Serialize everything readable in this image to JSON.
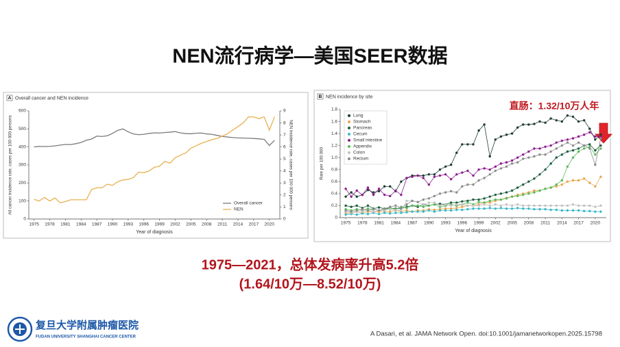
{
  "slide": {
    "title": "NEN流行病学—美国SEER数据",
    "summary": [
      "1975—2021，总体发病率升高5.2倍",
      "(1.64/10万—8.52/10万)"
    ],
    "logo": {
      "name": "复旦大学附属肿瘤医院",
      "name_en": "FUDAN UNIVERSITY SHANGHAI CANCER CENTER"
    },
    "citation": "A Dasari, et al. JAMA Network Open. doi:10.1001/jamanetworkopen.2025.15798"
  },
  "chart_data": [
    {
      "type": "line",
      "panel": "A",
      "title": "Overall cancer and NEN incidence",
      "x_label": "Year of diagnosis",
      "y_label": "All cancer incidence rate, cases per 100 000 persons",
      "y2_label": "NEN incidence rate, cases per 100 000 persons",
      "x": [
        1975,
        1976,
        1977,
        1978,
        1979,
        1980,
        1981,
        1982,
        1983,
        1984,
        1985,
        1986,
        1987,
        1988,
        1989,
        1990,
        1991,
        1992,
        1993,
        1994,
        1995,
        1996,
        1997,
        1998,
        1999,
        2000,
        2001,
        2002,
        2003,
        2004,
        2005,
        2006,
        2007,
        2008,
        2009,
        2010,
        2011,
        2012,
        2013,
        2014,
        2015,
        2016,
        2017,
        2018,
        2019,
        2020,
        2021
      ],
      "xlim": [
        1974,
        2022
      ],
      "xticks": [
        1975,
        1978,
        1981,
        1984,
        1987,
        1990,
        1993,
        1996,
        1999,
        2002,
        2005,
        2008,
        2011,
        2014,
        2017,
        2020
      ],
      "ylim": [
        0,
        600
      ],
      "yticks": [
        0,
        100,
        200,
        300,
        400,
        500,
        600
      ],
      "y2lim": [
        0,
        9
      ],
      "y2ticks": [
        0,
        1,
        2,
        3,
        4,
        5,
        6,
        7,
        8,
        9
      ],
      "grid": false,
      "markers": false,
      "legend": "lower right",
      "series": [
        {
          "name": "Overall cancer",
          "color": "#7a7a7a",
          "values": [
            400,
            403,
            402,
            403,
            406,
            410,
            414,
            413,
            418,
            425,
            437,
            444,
            460,
            458,
            462,
            475,
            492,
            500,
            484,
            472,
            468,
            470,
            475,
            478,
            477,
            480,
            482,
            485,
            478,
            474,
            473,
            476,
            477,
            472,
            470,
            464,
            458,
            455,
            452,
            450,
            449,
            448,
            447,
            445,
            442,
            408,
            437
          ]
        },
        {
          "name": "NEN",
          "color": "#e8b04e",
          "axis": "y2",
          "values": [
            1.64,
            1.5,
            1.8,
            1.5,
            1.75,
            1.35,
            1.45,
            1.6,
            1.6,
            1.6,
            1.6,
            2.45,
            2.6,
            2.6,
            2.9,
            2.8,
            3.1,
            3.25,
            3.3,
            3.45,
            3.9,
            3.85,
            4.0,
            4.3,
            4.4,
            4.8,
            4.65,
            5.1,
            5.3,
            5.5,
            5.9,
            6.1,
            6.3,
            6.45,
            6.6,
            6.7,
            6.9,
            7.1,
            7.4,
            7.7,
            8.0,
            8.5,
            8.5,
            8.35,
            8.5,
            7.4,
            8.52
          ]
        }
      ]
    },
    {
      "type": "line",
      "panel": "B",
      "title": "NEN incidence by site",
      "x_label": "Year of diagnosis",
      "y_label": "Rate per 100 000",
      "annotation": "直肠：1.32/10万人年",
      "x": [
        1975,
        1976,
        1977,
        1978,
        1979,
        1980,
        1981,
        1982,
        1983,
        1984,
        1985,
        1986,
        1987,
        1988,
        1989,
        1990,
        1991,
        1992,
        1993,
        1994,
        1995,
        1996,
        1997,
        1998,
        1999,
        2000,
        2001,
        2002,
        2003,
        2004,
        2005,
        2006,
        2007,
        2008,
        2009,
        2010,
        2011,
        2012,
        2013,
        2014,
        2015,
        2016,
        2017,
        2018,
        2019,
        2020,
        2021
      ],
      "xlim": [
        1974,
        2022
      ],
      "xticks": [
        1975,
        1978,
        1981,
        1984,
        1987,
        1990,
        1993,
        1996,
        1999,
        2002,
        2005,
        2008,
        2011,
        2014,
        2017,
        2020
      ],
      "ylim": [
        0,
        1.8
      ],
      "yticks": [
        0,
        0.2,
        0.4,
        0.6,
        0.8,
        {
          "value": 1,
          "label": "1.0"
        },
        1.2,
        1.4,
        1.6,
        1.8
      ],
      "grid": false,
      "markers": true,
      "legend": "upper left",
      "series": [
        {
          "name": "Lung",
          "color": "#1f3b36",
          "values": [
            0.35,
            0.42,
            0.35,
            0.38,
            0.46,
            0.42,
            0.44,
            0.52,
            0.52,
            0.44,
            0.6,
            0.66,
            0.7,
            0.7,
            0.7,
            0.72,
            0.72,
            0.8,
            0.85,
            0.88,
            1.08,
            1.22,
            1.22,
            1.22,
            1.45,
            1.55,
            1.02,
            1.3,
            1.35,
            1.38,
            1.4,
            1.5,
            1.55,
            1.55,
            1.56,
            1.6,
            1.58,
            1.65,
            1.62,
            1.6,
            1.7,
            1.68,
            1.6,
            1.62,
            1.48,
            1.3,
            1.38
          ]
        },
        {
          "name": "Stomach",
          "color": "#eaa64a",
          "values": [
            0.08,
            0.07,
            0.1,
            0.08,
            0.1,
            0.09,
            0.1,
            0.1,
            0.1,
            0.12,
            0.1,
            0.12,
            0.1,
            0.12,
            0.12,
            0.14,
            0.13,
            0.14,
            0.15,
            0.15,
            0.16,
            0.18,
            0.2,
            0.2,
            0.22,
            0.25,
            0.25,
            0.28,
            0.3,
            0.33,
            0.35,
            0.38,
            0.4,
            0.42,
            0.45,
            0.45,
            0.48,
            0.5,
            0.52,
            0.55,
            0.6,
            0.62,
            0.62,
            0.65,
            0.58,
            0.52,
            0.68
          ]
        },
        {
          "name": "Pancreas",
          "color": "#1c5e3c",
          "values": [
            0.2,
            0.18,
            0.2,
            0.16,
            0.2,
            0.15,
            0.17,
            0.15,
            0.16,
            0.15,
            0.15,
            0.18,
            0.2,
            0.18,
            0.22,
            0.2,
            0.22,
            0.23,
            0.22,
            0.25,
            0.25,
            0.27,
            0.28,
            0.3,
            0.3,
            0.32,
            0.35,
            0.38,
            0.4,
            0.42,
            0.45,
            0.5,
            0.55,
            0.6,
            0.65,
            0.72,
            0.8,
            0.9,
            1.0,
            1.05,
            1.1,
            1.12,
            1.15,
            1.2,
            1.22,
            1.12,
            1.2
          ]
        },
        {
          "name": "Cecum",
          "color": "#3bb7c9",
          "values": [
            0.05,
            0.06,
            0.05,
            0.07,
            0.06,
            0.08,
            0.06,
            0.08,
            0.07,
            0.08,
            0.08,
            0.09,
            0.1,
            0.1,
            0.1,
            0.12,
            0.1,
            0.12,
            0.12,
            0.12,
            0.13,
            0.13,
            0.14,
            0.15,
            0.15,
            0.15,
            0.16,
            0.15,
            0.16,
            0.15,
            0.15,
            0.16,
            0.15,
            0.15,
            0.14,
            0.14,
            0.14,
            0.13,
            0.13,
            0.12,
            0.12,
            0.12,
            0.12,
            0.11,
            0.11,
            0.1,
            0.1
          ]
        },
        {
          "name": "Small intestine",
          "color": "#8e1d8e",
          "values": [
            0.48,
            0.35,
            0.45,
            0.38,
            0.5,
            0.38,
            0.48,
            0.38,
            0.36,
            0.45,
            0.38,
            0.66,
            0.68,
            0.7,
            0.66,
            0.55,
            0.68,
            0.7,
            0.72,
            0.64,
            0.72,
            0.75,
            0.78,
            0.7,
            0.8,
            0.82,
            0.8,
            0.85,
            0.9,
            0.92,
            0.95,
            1.0,
            1.05,
            1.1,
            1.15,
            1.15,
            1.18,
            1.2,
            1.25,
            1.28,
            1.3,
            1.32,
            1.35,
            1.38,
            1.42,
            1.35,
            1.35
          ]
        },
        {
          "name": "Appendix",
          "color": "#5cb85c",
          "values": [
            0.14,
            0.12,
            0.14,
            0.12,
            0.15,
            0.14,
            0.12,
            0.13,
            0.16,
            0.14,
            0.18,
            0.16,
            0.2,
            0.2,
            0.18,
            0.2,
            0.22,
            0.18,
            0.2,
            0.22,
            0.2,
            0.22,
            0.25,
            0.22,
            0.26,
            0.25,
            0.28,
            0.3,
            0.3,
            0.32,
            0.35,
            0.36,
            0.38,
            0.4,
            0.42,
            0.45,
            0.48,
            0.5,
            0.55,
            0.62,
            0.85,
            1.0,
            1.1,
            1.15,
            1.18,
            1.05,
            1.15
          ]
        },
        {
          "name": "Colon",
          "color": "#c2c2c2",
          "values": [
            0.1,
            0.08,
            0.1,
            0.1,
            0.12,
            0.1,
            0.12,
            0.12,
            0.14,
            0.12,
            0.12,
            0.28,
            0.28,
            0.26,
            0.22,
            0.25,
            0.25,
            0.2,
            0.22,
            0.2,
            0.22,
            0.22,
            0.2,
            0.2,
            0.2,
            0.22,
            0.2,
            0.22,
            0.2,
            0.22,
            0.2,
            0.22,
            0.2,
            0.2,
            0.2,
            0.2,
            0.2,
            0.2,
            0.2,
            0.2,
            0.2,
            0.22,
            0.2,
            0.2,
            0.2,
            0.18,
            0.2
          ]
        },
        {
          "name": "Rectum",
          "color": "#8c8c8c",
          "values": [
            0.12,
            0.1,
            0.12,
            0.14,
            0.12,
            0.14,
            0.12,
            0.15,
            0.18,
            0.2,
            0.16,
            0.22,
            0.28,
            0.26,
            0.3,
            0.32,
            0.36,
            0.4,
            0.42,
            0.44,
            0.42,
            0.52,
            0.55,
            0.55,
            0.62,
            0.66,
            0.72,
            0.78,
            0.82,
            0.85,
            0.9,
            0.92,
            0.98,
            1.0,
            1.02,
            1.05,
            1.05,
            1.1,
            1.15,
            1.2,
            1.25,
            1.2,
            1.25,
            1.2,
            1.15,
            0.88,
            1.32
          ]
        }
      ]
    }
  ]
}
